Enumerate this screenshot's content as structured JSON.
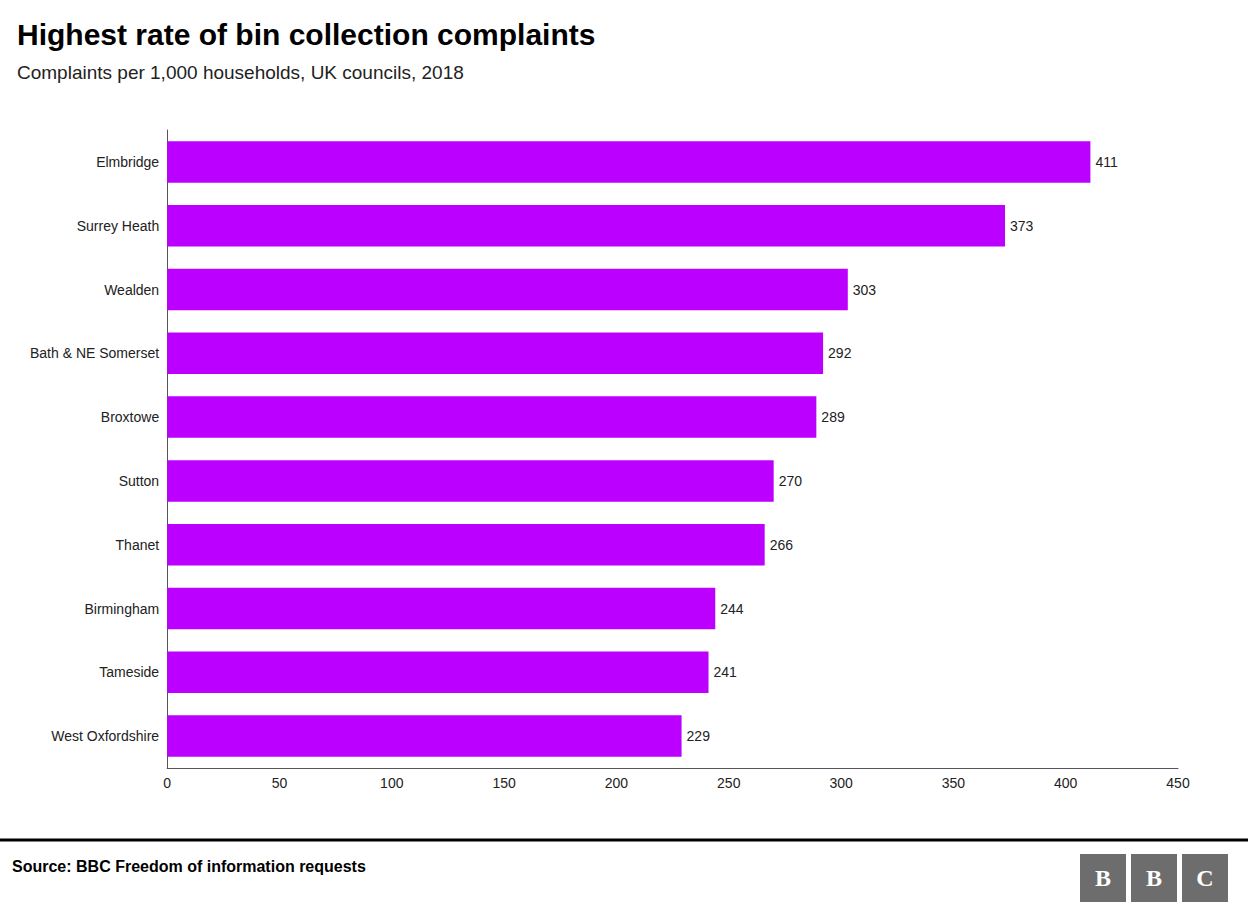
{
  "chart_data": {
    "type": "bar",
    "orientation": "horizontal",
    "title": "Highest rate of bin collection complaints",
    "subtitle": "Complaints per 1,000 households, UK councils, 2018",
    "categories": [
      "West Oxfordshire",
      "Tameside",
      "Birmingham",
      "Thanet",
      "Sutton",
      "Broxtowe",
      "Bath & NE Somerset",
      "Wealden",
      "Surrey Heath",
      "Elmbridge"
    ],
    "values": [
      229,
      241,
      244,
      266,
      270,
      289,
      292,
      303,
      373,
      411
    ],
    "color": "#bb00ff",
    "xlim": [
      0,
      450
    ],
    "xticks": [
      0,
      50,
      100,
      150,
      200,
      250,
      300,
      350,
      400,
      450
    ],
    "grid": false,
    "data_labels": true,
    "source": "Source: BBC Freedom of information requests",
    "logo": [
      "B",
      "B",
      "C"
    ],
    "logo_color": "#6d6d6d"
  }
}
